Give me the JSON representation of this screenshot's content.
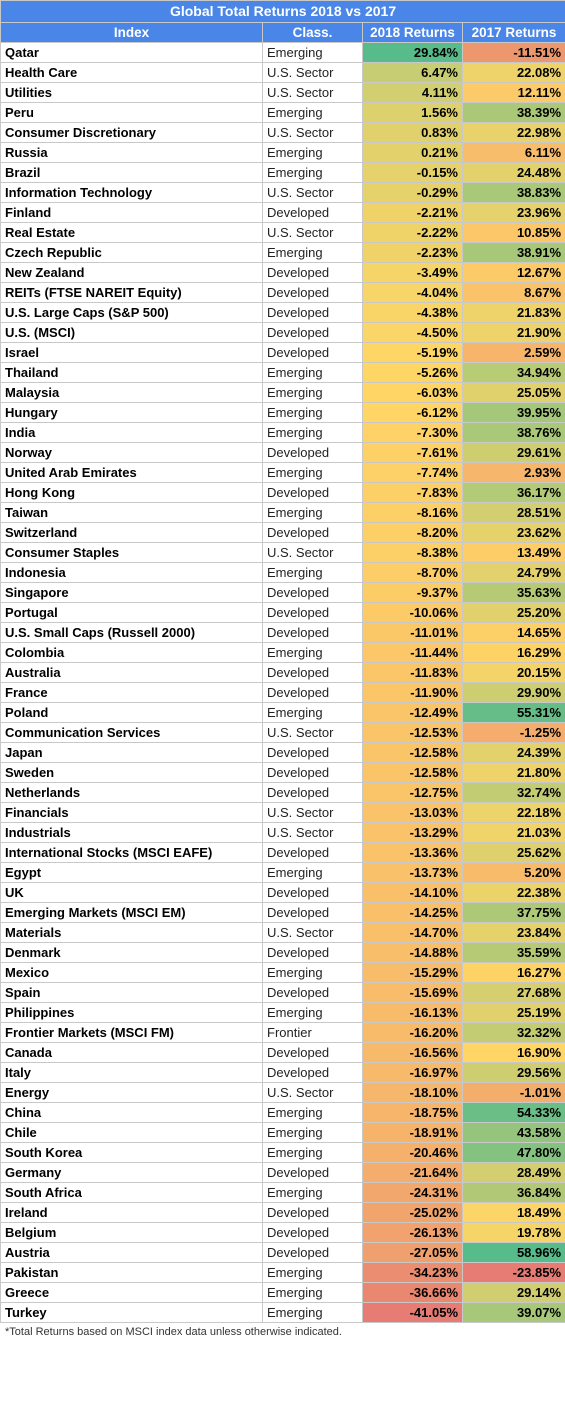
{
  "title": "Global Total Returns 2018 vs 2017",
  "headers": {
    "index": "Index",
    "class": "Class.",
    "r2018": "2018 Returns",
    "r2017": "2017 Returns"
  },
  "footnote": "*Total Returns based on MSCI index data unless otherwise indicated.",
  "colors": {
    "header_bg": "#4a86e8",
    "red": "#e67c73",
    "yellow": "#ffd666",
    "green": "#57bb8a"
  },
  "rows": [
    {
      "name": "Qatar",
      "class": "Emerging",
      "r2018": "29.84%",
      "r2017": "-11.51%",
      "v18": 29.84,
      "v17": -11.51
    },
    {
      "name": "Health Care",
      "class": "U.S. Sector",
      "r2018": "6.47%",
      "r2017": "22.08%",
      "v18": 6.47,
      "v17": 22.08
    },
    {
      "name": "Utilities",
      "class": "U.S. Sector",
      "r2018": "4.11%",
      "r2017": "12.11%",
      "v18": 4.11,
      "v17": 12.11
    },
    {
      "name": "Peru",
      "class": "Emerging",
      "r2018": "1.56%",
      "r2017": "38.39%",
      "v18": 1.56,
      "v17": 38.39
    },
    {
      "name": "Consumer Discretionary",
      "class": "U.S. Sector",
      "r2018": "0.83%",
      "r2017": "22.98%",
      "v18": 0.83,
      "v17": 22.98
    },
    {
      "name": "Russia",
      "class": "Emerging",
      "r2018": "0.21%",
      "r2017": "6.11%",
      "v18": 0.21,
      "v17": 6.11
    },
    {
      "name": "Brazil",
      "class": "Emerging",
      "r2018": "-0.15%",
      "r2017": "24.48%",
      "v18": -0.15,
      "v17": 24.48
    },
    {
      "name": "Information Technology",
      "class": "U.S. Sector",
      "r2018": "-0.29%",
      "r2017": "38.83%",
      "v18": -0.29,
      "v17": 38.83
    },
    {
      "name": "Finland",
      "class": "Developed",
      "r2018": "-2.21%",
      "r2017": "23.96%",
      "v18": -2.21,
      "v17": 23.96
    },
    {
      "name": "Real Estate",
      "class": "U.S. Sector",
      "r2018": "-2.22%",
      "r2017": "10.85%",
      "v18": -2.22,
      "v17": 10.85
    },
    {
      "name": "Czech Republic",
      "class": "Emerging",
      "r2018": "-2.23%",
      "r2017": "38.91%",
      "v18": -2.23,
      "v17": 38.91
    },
    {
      "name": "New Zealand",
      "class": "Developed",
      "r2018": "-3.49%",
      "r2017": "12.67%",
      "v18": -3.49,
      "v17": 12.67
    },
    {
      "name": "REITs (FTSE NAREIT Equity)",
      "class": "Developed",
      "r2018": "-4.04%",
      "r2017": "8.67%",
      "v18": -4.04,
      "v17": 8.67
    },
    {
      "name": "U.S. Large Caps (S&P 500)",
      "class": "Developed",
      "r2018": "-4.38%",
      "r2017": "21.83%",
      "v18": -4.38,
      "v17": 21.83
    },
    {
      "name": "U.S. (MSCI)",
      "class": "Developed",
      "r2018": "-4.50%",
      "r2017": "21.90%",
      "v18": -4.5,
      "v17": 21.9
    },
    {
      "name": "Israel",
      "class": "Developed",
      "r2018": "-5.19%",
      "r2017": "2.59%",
      "v18": -5.19,
      "v17": 2.59
    },
    {
      "name": "Thailand",
      "class": "Emerging",
      "r2018": "-5.26%",
      "r2017": "34.94%",
      "v18": -5.26,
      "v17": 34.94
    },
    {
      "name": "Malaysia",
      "class": "Emerging",
      "r2018": "-6.03%",
      "r2017": "25.05%",
      "v18": -6.03,
      "v17": 25.05
    },
    {
      "name": "Hungary",
      "class": "Emerging",
      "r2018": "-6.12%",
      "r2017": "39.95%",
      "v18": -6.12,
      "v17": 39.95
    },
    {
      "name": "India",
      "class": "Emerging",
      "r2018": "-7.30%",
      "r2017": "38.76%",
      "v18": -7.3,
      "v17": 38.76
    },
    {
      "name": "Norway",
      "class": "Developed",
      "r2018": "-7.61%",
      "r2017": "29.61%",
      "v18": -7.61,
      "v17": 29.61
    },
    {
      "name": "United Arab Emirates",
      "class": "Emerging",
      "r2018": "-7.74%",
      "r2017": "2.93%",
      "v18": -7.74,
      "v17": 2.93
    },
    {
      "name": "Hong Kong",
      "class": "Developed",
      "r2018": "-7.83%",
      "r2017": "36.17%",
      "v18": -7.83,
      "v17": 36.17
    },
    {
      "name": "Taiwan",
      "class": "Emerging",
      "r2018": "-8.16%",
      "r2017": "28.51%",
      "v18": -8.16,
      "v17": 28.51
    },
    {
      "name": "Switzerland",
      "class": "Developed",
      "r2018": "-8.20%",
      "r2017": "23.62%",
      "v18": -8.2,
      "v17": 23.62
    },
    {
      "name": "Consumer Staples",
      "class": "U.S. Sector",
      "r2018": "-8.38%",
      "r2017": "13.49%",
      "v18": -8.38,
      "v17": 13.49
    },
    {
      "name": "Indonesia",
      "class": "Emerging",
      "r2018": "-8.70%",
      "r2017": "24.79%",
      "v18": -8.7,
      "v17": 24.79
    },
    {
      "name": "Singapore",
      "class": "Developed",
      "r2018": "-9.37%",
      "r2017": "35.63%",
      "v18": -9.37,
      "v17": 35.63
    },
    {
      "name": "Portugal",
      "class": "Developed",
      "r2018": "-10.06%",
      "r2017": "25.20%",
      "v18": -10.06,
      "v17": 25.2
    },
    {
      "name": "U.S. Small Caps (Russell 2000)",
      "class": "Developed",
      "r2018": "-11.01%",
      "r2017": "14.65%",
      "v18": -11.01,
      "v17": 14.65
    },
    {
      "name": "Colombia",
      "class": "Emerging",
      "r2018": "-11.44%",
      "r2017": "16.29%",
      "v18": -11.44,
      "v17": 16.29
    },
    {
      "name": "Australia",
      "class": "Developed",
      "r2018": "-11.83%",
      "r2017": "20.15%",
      "v18": -11.83,
      "v17": 20.15
    },
    {
      "name": "France",
      "class": "Developed",
      "r2018": "-11.90%",
      "r2017": "29.90%",
      "v18": -11.9,
      "v17": 29.9
    },
    {
      "name": "Poland",
      "class": "Emerging",
      "r2018": "-12.49%",
      "r2017": "55.31%",
      "v18": -12.49,
      "v17": 55.31
    },
    {
      "name": "Communication Services",
      "class": "U.S. Sector",
      "r2018": "-12.53%",
      "r2017": "-1.25%",
      "v18": -12.53,
      "v17": -1.25
    },
    {
      "name": "Japan",
      "class": "Developed",
      "r2018": "-12.58%",
      "r2017": "24.39%",
      "v18": -12.58,
      "v17": 24.39
    },
    {
      "name": "Sweden",
      "class": "Developed",
      "r2018": "-12.58%",
      "r2017": "21.80%",
      "v18": -12.58,
      "v17": 21.8
    },
    {
      "name": "Netherlands",
      "class": "Developed",
      "r2018": "-12.75%",
      "r2017": "32.74%",
      "v18": -12.75,
      "v17": 32.74
    },
    {
      "name": "Financials",
      "class": "U.S. Sector",
      "r2018": "-13.03%",
      "r2017": "22.18%",
      "v18": -13.03,
      "v17": 22.18
    },
    {
      "name": "Industrials",
      "class": "U.S. Sector",
      "r2018": "-13.29%",
      "r2017": "21.03%",
      "v18": -13.29,
      "v17": 21.03
    },
    {
      "name": "International Stocks (MSCI EAFE)",
      "class": "Developed",
      "r2018": "-13.36%",
      "r2017": "25.62%",
      "v18": -13.36,
      "v17": 25.62
    },
    {
      "name": "Egypt",
      "class": "Emerging",
      "r2018": "-13.73%",
      "r2017": "5.20%",
      "v18": -13.73,
      "v17": 5.2
    },
    {
      "name": "UK",
      "class": "Developed",
      "r2018": "-14.10%",
      "r2017": "22.38%",
      "v18": -14.1,
      "v17": 22.38
    },
    {
      "name": "Emerging Markets (MSCI EM)",
      "class": "Developed",
      "r2018": "-14.25%",
      "r2017": "37.75%",
      "v18": -14.25,
      "v17": 37.75
    },
    {
      "name": "Materials",
      "class": "U.S. Sector",
      "r2018": "-14.70%",
      "r2017": "23.84%",
      "v18": -14.7,
      "v17": 23.84
    },
    {
      "name": "Denmark",
      "class": "Developed",
      "r2018": "-14.88%",
      "r2017": "35.59%",
      "v18": -14.88,
      "v17": 35.59
    },
    {
      "name": "Mexico",
      "class": "Emerging",
      "r2018": "-15.29%",
      "r2017": "16.27%",
      "v18": -15.29,
      "v17": 16.27
    },
    {
      "name": "Spain",
      "class": "Developed",
      "r2018": "-15.69%",
      "r2017": "27.68%",
      "v18": -15.69,
      "v17": 27.68
    },
    {
      "name": "Philippines",
      "class": "Emerging",
      "r2018": "-16.13%",
      "r2017": "25.19%",
      "v18": -16.13,
      "v17": 25.19
    },
    {
      "name": "Frontier Markets (MSCI FM)",
      "class": "Frontier",
      "r2018": "-16.20%",
      "r2017": "32.32%",
      "v18": -16.2,
      "v17": 32.32
    },
    {
      "name": "Canada",
      "class": "Developed",
      "r2018": "-16.56%",
      "r2017": "16.90%",
      "v18": -16.56,
      "v17": 16.9
    },
    {
      "name": "Italy",
      "class": "Developed",
      "r2018": "-16.97%",
      "r2017": "29.56%",
      "v18": -16.97,
      "v17": 29.56
    },
    {
      "name": "Energy",
      "class": "U.S. Sector",
      "r2018": "-18.10%",
      "r2017": "-1.01%",
      "v18": -18.1,
      "v17": -1.01
    },
    {
      "name": "China",
      "class": "Emerging",
      "r2018": "-18.75%",
      "r2017": "54.33%",
      "v18": -18.75,
      "v17": 54.33
    },
    {
      "name": "Chile",
      "class": "Emerging",
      "r2018": "-18.91%",
      "r2017": "43.58%",
      "v18": -18.91,
      "v17": 43.58
    },
    {
      "name": "South Korea",
      "class": "Emerging",
      "r2018": "-20.46%",
      "r2017": "47.80%",
      "v18": -20.46,
      "v17": 47.8
    },
    {
      "name": "Germany",
      "class": "Developed",
      "r2018": "-21.64%",
      "r2017": "28.49%",
      "v18": -21.64,
      "v17": 28.49
    },
    {
      "name": "South Africa",
      "class": "Emerging",
      "r2018": "-24.31%",
      "r2017": "36.84%",
      "v18": -24.31,
      "v17": 36.84
    },
    {
      "name": "Ireland",
      "class": "Developed",
      "r2018": "-25.02%",
      "r2017": "18.49%",
      "v18": -25.02,
      "v17": 18.49
    },
    {
      "name": "Belgium",
      "class": "Developed",
      "r2018": "-26.13%",
      "r2017": "19.78%",
      "v18": -26.13,
      "v17": 19.78
    },
    {
      "name": "Austria",
      "class": "Developed",
      "r2018": "-27.05%",
      "r2017": "58.96%",
      "v18": -27.05,
      "v17": 58.96
    },
    {
      "name": "Pakistan",
      "class": "Emerging",
      "r2018": "-34.23%",
      "r2017": "-23.85%",
      "v18": -34.23,
      "v17": -23.85
    },
    {
      "name": "Greece",
      "class": "Emerging",
      "r2018": "-36.66%",
      "r2017": "29.14%",
      "v18": -36.66,
      "v17": 29.14
    },
    {
      "name": "Turkey",
      "class": "Emerging",
      "r2018": "-41.05%",
      "r2017": "39.07%",
      "v18": -41.05,
      "v17": 39.07
    }
  ]
}
